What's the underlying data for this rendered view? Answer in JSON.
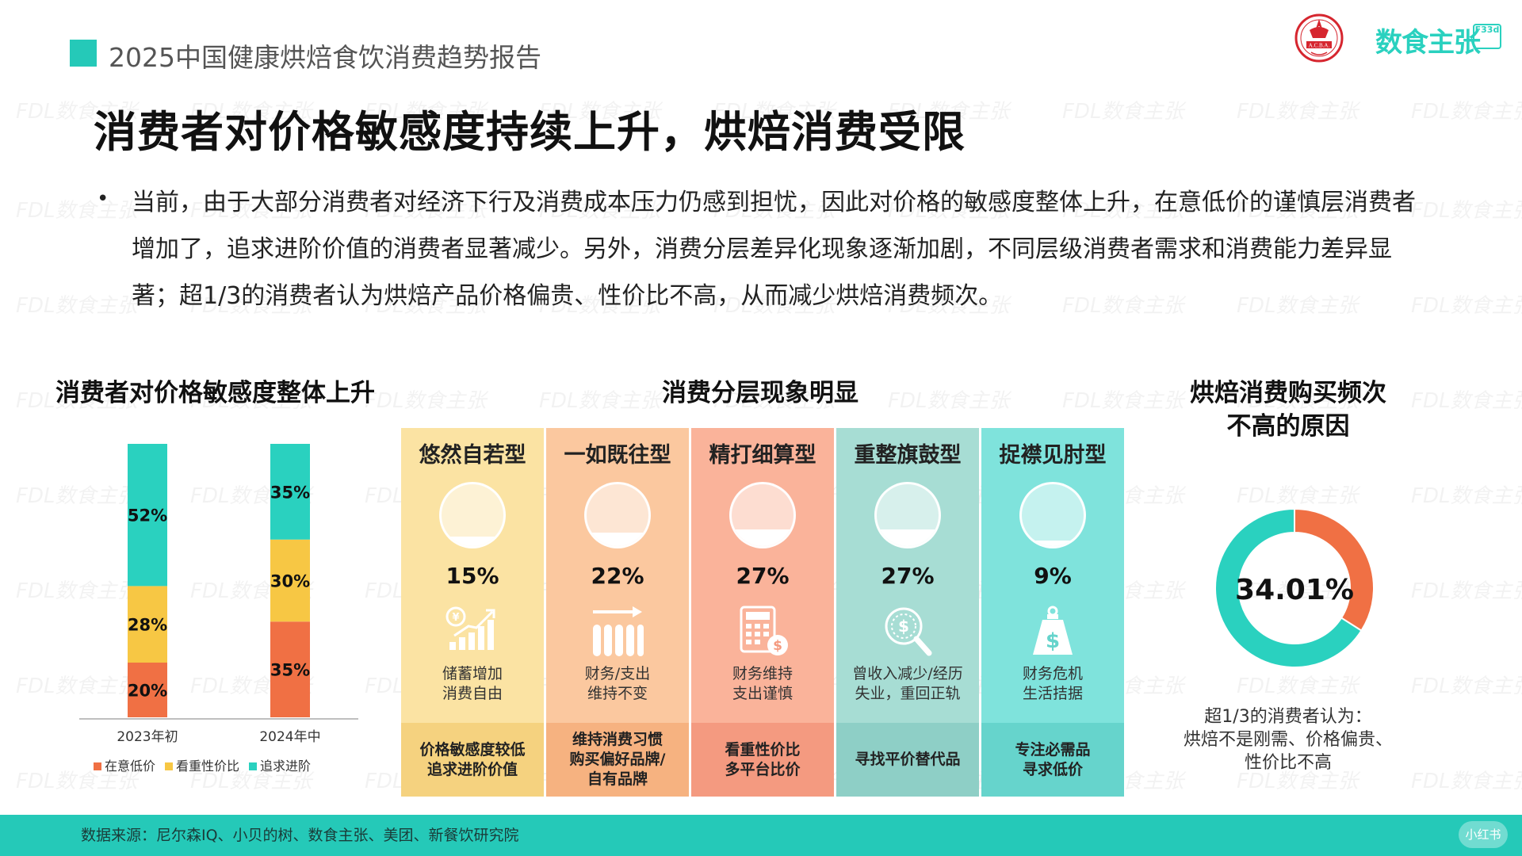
{
  "header": {
    "report_title": "2025中国健康烘焙食饮消费趋势报告",
    "seal_text": "A.C.B.A.",
    "brand_name": "数食主张",
    "brand_box": "F33d"
  },
  "main_title": "消费者对价格敏感度持续上升，烘焙消费受限",
  "bullet": "当前，由于大部分消费者对经济下行及消费成本压力仍感到担忧，因此对价格的敏感度整体上升，在意低价的谨慎层消费者增加了，追求进阶价值的消费者显著减少。另外，消费分层差异化现象逐渐加剧，不同层级消费者需求和消费能力差异显著；超1/3的消费者认为烘焙产品价格偏贵、性价比不高，从而减少烘焙消费频次。",
  "section_left_title": "消费者对价格敏感度整体上升",
  "section_mid_title": "消费分层现象明显",
  "section_right_title_1": "烘焙消费购买频次",
  "section_right_title_2": "不高的原因",
  "chart_data": [
    {
      "type": "bar",
      "stacked": true,
      "categories": [
        "2023年初",
        "2024年中"
      ],
      "series": [
        {
          "name": "在意低价",
          "color": "#f07044",
          "values": [
            20,
            35
          ]
        },
        {
          "name": "看重性价比",
          "color": "#f7c744",
          "values": [
            28,
            30
          ]
        },
        {
          "name": "追求进阶",
          "color": "#2ad1bf",
          "values": [
            52,
            35
          ]
        }
      ],
      "unit": "%",
      "legend_position": "bottom"
    },
    {
      "type": "table",
      "segments": [
        {
          "name": "悠然自若型",
          "percent": "15%",
          "value": 15,
          "desc": "储蓄增加\n消费自由",
          "foot": "价格敏感度较低\n追求进阶价值",
          "icon": "savings-growth-icon",
          "top_color": "#fbe3a3",
          "foot_color": "#f5d27f"
        },
        {
          "name": "一如既往型",
          "percent": "22%",
          "value": 22,
          "desc": "财务/支出\n维持不变",
          "foot": "维持消费习惯\n购买偏好品牌/\n自有品牌",
          "icon": "stable-bars-icon",
          "top_color": "#fbc89f",
          "foot_color": "#f6b280"
        },
        {
          "name": "精打细算型",
          "percent": "27%",
          "value": 27,
          "desc": "财务维持\n支出谨慎",
          "foot": "看重性价比\n多平台比价",
          "icon": "calculator-icon",
          "top_color": "#fab39a",
          "foot_color": "#f49a80"
        },
        {
          "name": "重整旗鼓型",
          "percent": "27%",
          "value": 27,
          "desc": "曾收入减少/经历\n失业，重回正轨",
          "foot": "寻找平价替代品",
          "icon": "dollar-search-icon",
          "top_color": "#a7ddd4",
          "foot_color": "#8ecfc6"
        },
        {
          "name": "捉襟见肘型",
          "percent": "9%",
          "value": 9,
          "desc": "财务危机\n生活拮据",
          "foot": "专注必需品\n寻求低价",
          "icon": "dollar-weight-icon",
          "top_color": "#7fe3dc",
          "foot_color": "#66d4cc"
        }
      ]
    },
    {
      "type": "pie",
      "donut": true,
      "values": [
        34.01,
        65.99
      ],
      "colors": [
        "#f07044",
        "#2ad1bf"
      ],
      "center_label": "34.01%"
    }
  ],
  "donut_note": "超1/3的消费者认为：\n烘焙不是刚需、价格偏贵、\n性价比不高",
  "footer": {
    "source": "数据来源：尼尔森IQ、小贝的树、数食主张、美团、新餐饮研究院",
    "badge": "小红书"
  },
  "watermark": "FDL数食主张"
}
